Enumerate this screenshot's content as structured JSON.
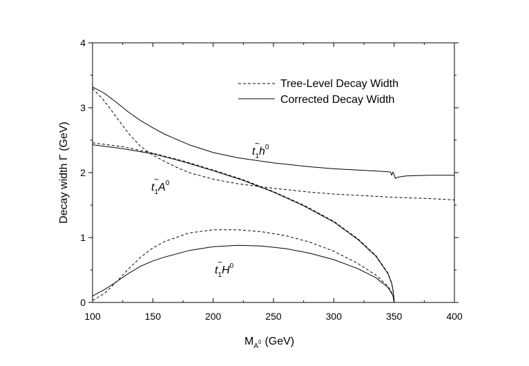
{
  "chart_data": {
    "type": "line",
    "xlabel": "M",
    "xlabel_sub": "A",
    "xlabel_sup": "0",
    "xlabel_unit": "(GeV)",
    "ylabel": "Decay width  Γ  (GeV)",
    "xlim": [
      100,
      400
    ],
    "ylim": [
      0,
      4
    ],
    "xticks": [
      "100",
      "150",
      "200",
      "250",
      "300",
      "350",
      "400"
    ],
    "yticks": [
      "0",
      "1",
      "2",
      "3",
      "4"
    ],
    "grid": false,
    "legend_position": "top-right",
    "legend": [
      {
        "label": "Tree-Level Decay Width",
        "style": "dashed"
      },
      {
        "label": "Corrected Decay Width",
        "style": "solid"
      }
    ],
    "annotations": [
      {
        "id": "label-h0",
        "tilde": "~",
        "base": "t",
        "sub": "1",
        "particle": "h",
        "sup": "0"
      },
      {
        "id": "label-A0",
        "tilde": "~",
        "base": "t",
        "sub": "1",
        "particle": "A",
        "sup": "0"
      },
      {
        "id": "label-H0",
        "tilde": "~",
        "base": "t",
        "sub": "1",
        "particle": "H",
        "sup": "0"
      }
    ],
    "series": [
      {
        "style": "dashed",
        "x": [
          100,
          110,
          120,
          130,
          140,
          150,
          160,
          170,
          180,
          200,
          220,
          250,
          280,
          300,
          330,
          350,
          380,
          400
        ],
        "values": [
          3.3,
          3.1,
          2.85,
          2.6,
          2.4,
          2.27,
          2.17,
          2.08,
          2.0,
          1.9,
          1.83,
          1.76,
          1.7,
          1.67,
          1.64,
          1.62,
          1.6,
          1.58
        ]
      },
      {
        "style": "solid",
        "x": [
          100,
          110,
          120,
          130,
          140,
          150,
          160,
          180,
          200,
          220,
          250,
          280,
          300,
          320,
          340,
          347,
          348,
          349,
          350,
          351,
          353,
          360,
          380,
          400
        ],
        "values": [
          3.32,
          3.22,
          3.08,
          2.93,
          2.8,
          2.69,
          2.59,
          2.43,
          2.31,
          2.23,
          2.15,
          2.09,
          2.06,
          2.04,
          2.02,
          2.01,
          1.96,
          2.01,
          1.97,
          1.91,
          1.93,
          1.95,
          1.96,
          1.96
        ]
      },
      {
        "style": "dashed",
        "x": [
          100,
          125,
          150,
          175,
          200,
          225,
          250,
          275,
          300,
          320,
          335,
          345,
          348,
          349.5,
          350
        ],
        "values": [
          2.46,
          2.4,
          2.3,
          2.18,
          2.04,
          1.89,
          1.71,
          1.5,
          1.25,
          0.98,
          0.72,
          0.45,
          0.3,
          0.15,
          0.0
        ]
      },
      {
        "style": "solid",
        "x": [
          100,
          125,
          150,
          175,
          200,
          225,
          250,
          275,
          300,
          320,
          335,
          345,
          348,
          349.5,
          350
        ],
        "values": [
          2.43,
          2.37,
          2.29,
          2.17,
          2.03,
          1.88,
          1.7,
          1.49,
          1.24,
          0.97,
          0.71,
          0.44,
          0.29,
          0.14,
          0.0
        ]
      },
      {
        "style": "dashed",
        "x": [
          100,
          110,
          120,
          130,
          140,
          150,
          160,
          180,
          200,
          220,
          240,
          260,
          280,
          300,
          320,
          335,
          345,
          349,
          350
        ],
        "values": [
          0.03,
          0.14,
          0.32,
          0.52,
          0.7,
          0.84,
          0.94,
          1.07,
          1.12,
          1.12,
          1.09,
          1.03,
          0.93,
          0.79,
          0.6,
          0.42,
          0.25,
          0.12,
          0.0
        ]
      },
      {
        "style": "solid",
        "x": [
          100,
          110,
          120,
          130,
          140,
          150,
          160,
          180,
          200,
          220,
          240,
          260,
          280,
          300,
          320,
          335,
          345,
          349,
          350
        ],
        "values": [
          0.1,
          0.2,
          0.32,
          0.45,
          0.56,
          0.64,
          0.7,
          0.8,
          0.86,
          0.88,
          0.87,
          0.83,
          0.76,
          0.66,
          0.52,
          0.38,
          0.23,
          0.11,
          0.0
        ]
      }
    ]
  }
}
